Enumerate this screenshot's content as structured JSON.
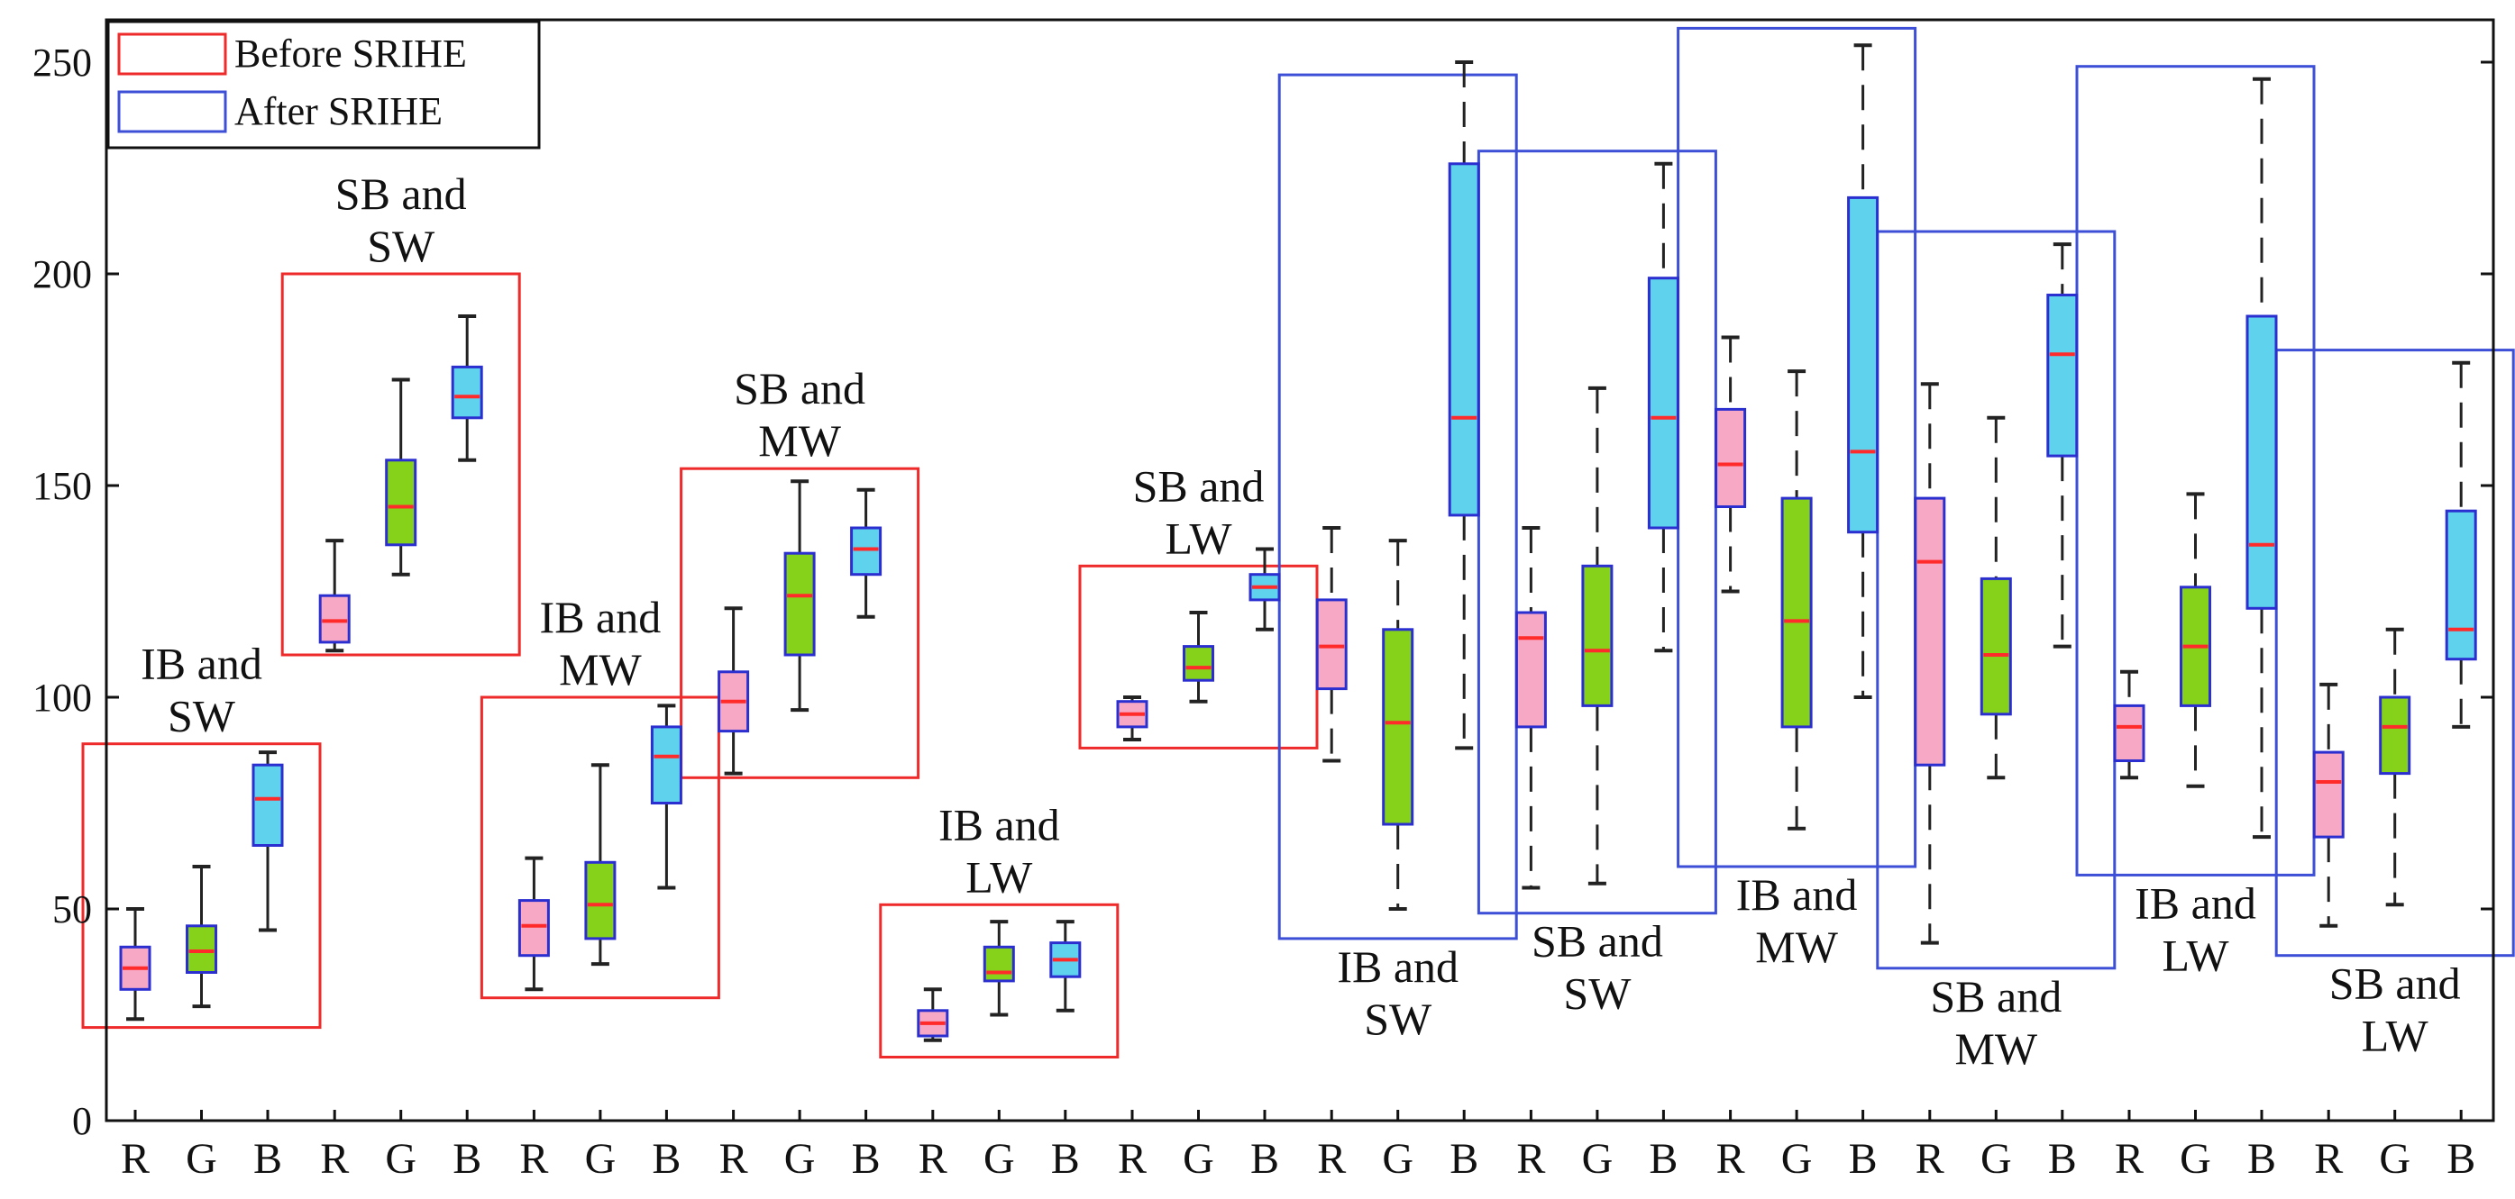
{
  "chart_data": {
    "type": "box",
    "title": "",
    "xlabel": "",
    "ylabel": "",
    "ylim": [
      0,
      260
    ],
    "yticks": [
      0,
      50,
      100,
      150,
      200,
      250
    ],
    "grid": false,
    "legend": {
      "position": "top-left",
      "entries": [
        {
          "name": "Before SRIHE",
          "color": "#ee2a2a"
        },
        {
          "name": "After SRIHE",
          "color": "#3c4fd6"
        }
      ]
    },
    "channel_colors": {
      "R": "#f7a8c4",
      "G": "#86d21a",
      "B": "#5fd2ee"
    },
    "median_color": "#ff2a2a",
    "frame_colors": {
      "before": "#ee2a2a",
      "after": "#3c4fd6"
    },
    "groups": [
      {
        "label": [
          "IB and",
          "SW"
        ],
        "phase": "before",
        "label_pos": "above",
        "frame": [
          22,
          89
        ],
        "boxes": [
          {
            "channel": "R",
            "min": 24,
            "q1": 31,
            "median": 36,
            "q3": 41,
            "max": 50
          },
          {
            "channel": "G",
            "min": 27,
            "q1": 35,
            "median": 40,
            "q3": 46,
            "max": 60
          },
          {
            "channel": "B",
            "min": 45,
            "q1": 65,
            "median": 76,
            "q3": 84,
            "max": 87
          }
        ]
      },
      {
        "label": [
          "SB and",
          "SW"
        ],
        "phase": "before",
        "label_pos": "above",
        "frame": [
          110,
          200
        ],
        "boxes": [
          {
            "channel": "R",
            "min": 111,
            "q1": 113,
            "median": 118,
            "q3": 124,
            "max": 137
          },
          {
            "channel": "G",
            "min": 129,
            "q1": 136,
            "median": 145,
            "q3": 156,
            "max": 175
          },
          {
            "channel": "B",
            "min": 156,
            "q1": 166,
            "median": 171,
            "q3": 178,
            "max": 190
          }
        ]
      },
      {
        "label": [
          "IB and",
          "MW"
        ],
        "phase": "before",
        "label_pos": "above",
        "frame": [
          29,
          100
        ],
        "boxes": [
          {
            "channel": "R",
            "min": 31,
            "q1": 39,
            "median": 46,
            "q3": 52,
            "max": 62
          },
          {
            "channel": "G",
            "min": 37,
            "q1": 43,
            "median": 51,
            "q3": 61,
            "max": 84
          },
          {
            "channel": "B",
            "min": 55,
            "q1": 75,
            "median": 86,
            "q3": 93,
            "max": 98
          }
        ]
      },
      {
        "label": [
          "SB and",
          "MW"
        ],
        "phase": "before",
        "label_pos": "above",
        "frame": [
          81,
          154
        ],
        "boxes": [
          {
            "channel": "R",
            "min": 82,
            "q1": 92,
            "median": 99,
            "q3": 106,
            "max": 121
          },
          {
            "channel": "G",
            "min": 97,
            "q1": 110,
            "median": 124,
            "q3": 134,
            "max": 151
          },
          {
            "channel": "B",
            "min": 119,
            "q1": 129,
            "median": 135,
            "q3": 140,
            "max": 149
          }
        ]
      },
      {
        "label": [
          "IB and",
          "LW"
        ],
        "phase": "before",
        "label_pos": "above",
        "frame": [
          15,
          51
        ],
        "boxes": [
          {
            "channel": "R",
            "min": 19,
            "q1": 20,
            "median": 23,
            "q3": 26,
            "max": 31
          },
          {
            "channel": "G",
            "min": 25,
            "q1": 33,
            "median": 35,
            "q3": 41,
            "max": 47
          },
          {
            "channel": "B",
            "min": 26,
            "q1": 34,
            "median": 38,
            "q3": 42,
            "max": 47
          }
        ]
      },
      {
        "label": [
          "SB and",
          "LW"
        ],
        "phase": "before",
        "label_pos": "above",
        "frame": [
          88,
          131
        ],
        "boxes": [
          {
            "channel": "R",
            "min": 90,
            "q1": 93,
            "median": 96,
            "q3": 99,
            "max": 100
          },
          {
            "channel": "G",
            "min": 99,
            "q1": 104,
            "median": 107,
            "q3": 112,
            "max": 120
          },
          {
            "channel": "B",
            "min": 116,
            "q1": 123,
            "median": 126,
            "q3": 129,
            "max": 135
          }
        ]
      },
      {
        "label": [
          "IB and",
          "SW"
        ],
        "phase": "after",
        "label_pos": "below",
        "frame": [
          43,
          247
        ],
        "boxes": [
          {
            "channel": "R",
            "min": 85,
            "q1": 102,
            "median": 112,
            "q3": 123,
            "max": 140
          },
          {
            "channel": "G",
            "min": 50,
            "q1": 70,
            "median": 94,
            "q3": 116,
            "max": 137
          },
          {
            "channel": "B",
            "min": 88,
            "q1": 143,
            "median": 166,
            "q3": 226,
            "max": 250
          }
        ]
      },
      {
        "label": [
          "SB and",
          "SW"
        ],
        "phase": "after",
        "label_pos": "below",
        "frame": [
          49,
          229
        ],
        "boxes": [
          {
            "channel": "R",
            "min": 55,
            "q1": 93,
            "median": 114,
            "q3": 120,
            "max": 140
          },
          {
            "channel": "G",
            "min": 56,
            "q1": 98,
            "median": 111,
            "q3": 131,
            "max": 173
          },
          {
            "channel": "B",
            "min": 111,
            "q1": 140,
            "median": 166,
            "q3": 199,
            "max": 226
          }
        ]
      },
      {
        "label": [
          "IB and",
          "MW"
        ],
        "phase": "after",
        "label_pos": "below",
        "frame": [
          60,
          258
        ],
        "boxes": [
          {
            "channel": "R",
            "min": 125,
            "q1": 145,
            "median": 155,
            "q3": 168,
            "max": 185
          },
          {
            "channel": "G",
            "min": 69,
            "q1": 93,
            "median": 118,
            "q3": 147,
            "max": 177
          },
          {
            "channel": "B",
            "min": 100,
            "q1": 139,
            "median": 158,
            "q3": 218,
            "max": 254
          }
        ]
      },
      {
        "label": [
          "SB and",
          "MW"
        ],
        "phase": "after",
        "label_pos": "below",
        "frame": [
          36,
          210
        ],
        "boxes": [
          {
            "channel": "R",
            "min": 42,
            "q1": 84,
            "median": 132,
            "q3": 147,
            "max": 174
          },
          {
            "channel": "G",
            "min": 81,
            "q1": 96,
            "median": 110,
            "q3": 128,
            "max": 166
          },
          {
            "channel": "B",
            "min": 112,
            "q1": 157,
            "median": 181,
            "q3": 195,
            "max": 207
          }
        ]
      },
      {
        "label": [
          "IB and",
          "LW"
        ],
        "phase": "after",
        "label_pos": "below",
        "frame": [
          58,
          249
        ],
        "boxes": [
          {
            "channel": "R",
            "min": 81,
            "q1": 85,
            "median": 93,
            "q3": 98,
            "max": 106
          },
          {
            "channel": "G",
            "min": 79,
            "q1": 98,
            "median": 112,
            "q3": 126,
            "max": 148
          },
          {
            "channel": "B",
            "min": 67,
            "q1": 121,
            "median": 136,
            "q3": 190,
            "max": 246
          }
        ]
      },
      {
        "label": [
          "SB and",
          "LW"
        ],
        "phase": "after",
        "label_pos": "below",
        "frame": [
          39,
          182
        ],
        "boxes": [
          {
            "channel": "R",
            "min": 46,
            "q1": 67,
            "median": 80,
            "q3": 87,
            "max": 103
          },
          {
            "channel": "G",
            "min": 51,
            "q1": 82,
            "median": 93,
            "q3": 100,
            "max": 116
          },
          {
            "channel": "B",
            "min": 93,
            "q1": 109,
            "median": 116,
            "q3": 144,
            "max": 179
          }
        ]
      }
    ]
  }
}
